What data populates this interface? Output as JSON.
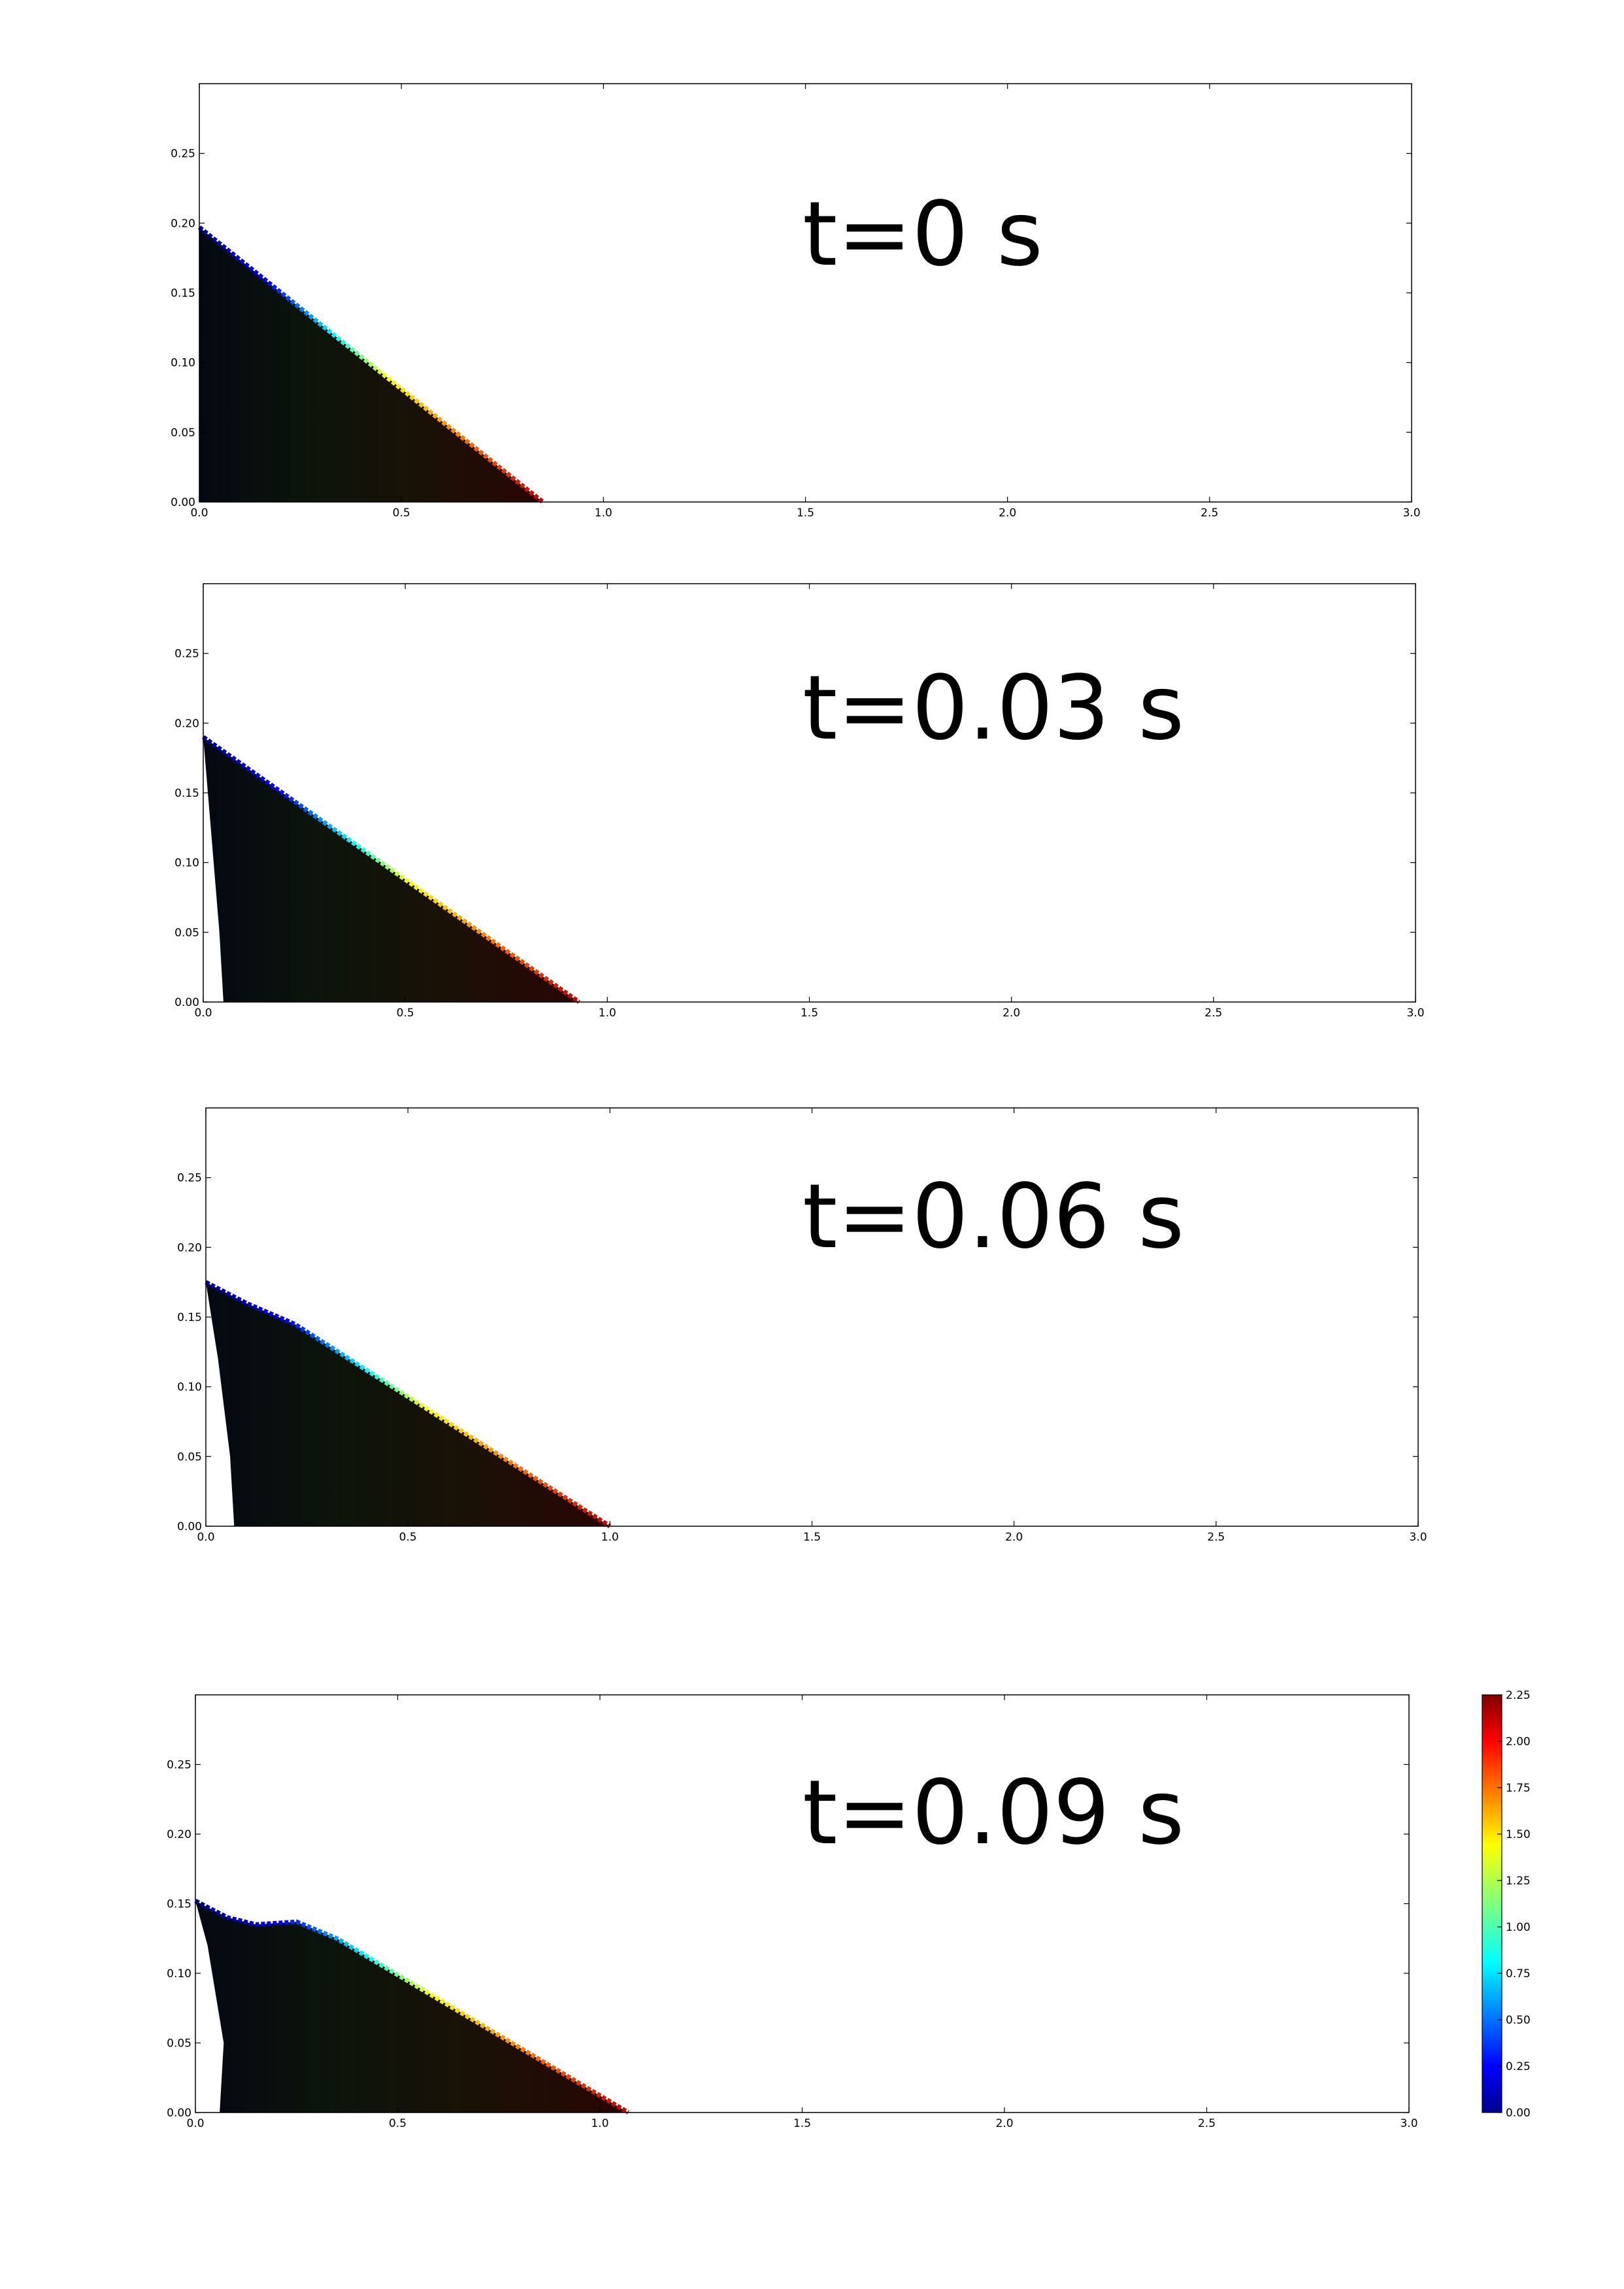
{
  "chart_data": [
    {
      "type": "heatmap",
      "title": "t=0 s",
      "xlim": [
        0,
        3
      ],
      "ylim": [
        0,
        0.3
      ],
      "x_ticks": [
        "0.0",
        "0.5",
        "1.0",
        "1.5",
        "2.0",
        "2.5",
        "3.0"
      ],
      "y_ticks": [
        "0.00",
        "0.05",
        "0.10",
        "0.15",
        "0.20",
        "0.25"
      ],
      "grid": false,
      "outline": [
        [
          0,
          0.197
        ],
        [
          0.85,
          0
        ],
        [
          0,
          0
        ]
      ],
      "notes": "fluid region triangle, colored by value (dark interior, blue near top-left, red near right tip)"
    },
    {
      "type": "heatmap",
      "title": "t=0.03 s",
      "xlim": [
        0,
        3
      ],
      "ylim": [
        0,
        0.3
      ],
      "x_ticks": [
        "0.0",
        "0.5",
        "1.0",
        "1.5",
        "2.0",
        "2.5",
        "3.0"
      ],
      "y_ticks": [
        "0.00",
        "0.05",
        "0.10",
        "0.15",
        "0.20",
        "0.25"
      ],
      "grid": false,
      "outline": [
        [
          0,
          0.19
        ],
        [
          0.93,
          0
        ],
        [
          0.05,
          0
        ],
        [
          0.04,
          0.05
        ],
        [
          0.02,
          0.12
        ]
      ]
    },
    {
      "type": "heatmap",
      "title": "t=0.06 s",
      "xlim": [
        0,
        3
      ],
      "ylim": [
        0,
        0.3
      ],
      "x_ticks": [
        "0.0",
        "0.5",
        "1.0",
        "1.5",
        "2.0",
        "2.5",
        "3.0"
      ],
      "y_ticks": [
        "0.00",
        "0.05",
        "0.10",
        "0.15",
        "0.20",
        "0.25"
      ],
      "grid": false,
      "outline": [
        [
          0,
          0.175
        ],
        [
          0.1,
          0.16
        ],
        [
          0.22,
          0.145
        ],
        [
          1.0,
          0
        ],
        [
          0.07,
          0
        ],
        [
          0.06,
          0.05
        ],
        [
          0.03,
          0.12
        ]
      ]
    },
    {
      "type": "heatmap",
      "title": "t=0.09 s",
      "xlim": [
        0,
        3
      ],
      "ylim": [
        0,
        0.3
      ],
      "x_ticks": [
        "0.0",
        "0.5",
        "1.0",
        "1.5",
        "2.0",
        "2.5",
        "3.0"
      ],
      "y_ticks": [
        "0.00",
        "0.05",
        "0.10",
        "0.15",
        "0.20",
        "0.25"
      ],
      "grid": false,
      "outline": [
        [
          0,
          0.152
        ],
        [
          0.08,
          0.14
        ],
        [
          0.15,
          0.135
        ],
        [
          0.25,
          0.137
        ],
        [
          0.35,
          0.125
        ],
        [
          1.07,
          0
        ],
        [
          0.06,
          0
        ],
        [
          0.07,
          0.05
        ],
        [
          0.03,
          0.12
        ]
      ]
    }
  ],
  "colorbar": {
    "ticks": [
      "0.00",
      "0.25",
      "0.50",
      "0.75",
      "1.00",
      "1.25",
      "1.50",
      "1.75",
      "2.00",
      "2.25"
    ],
    "range": [
      0,
      2.25
    ],
    "colormap": "jet"
  },
  "colors": {
    "interior": "#1a0d05",
    "low": "#00008f",
    "high": "#800000"
  }
}
